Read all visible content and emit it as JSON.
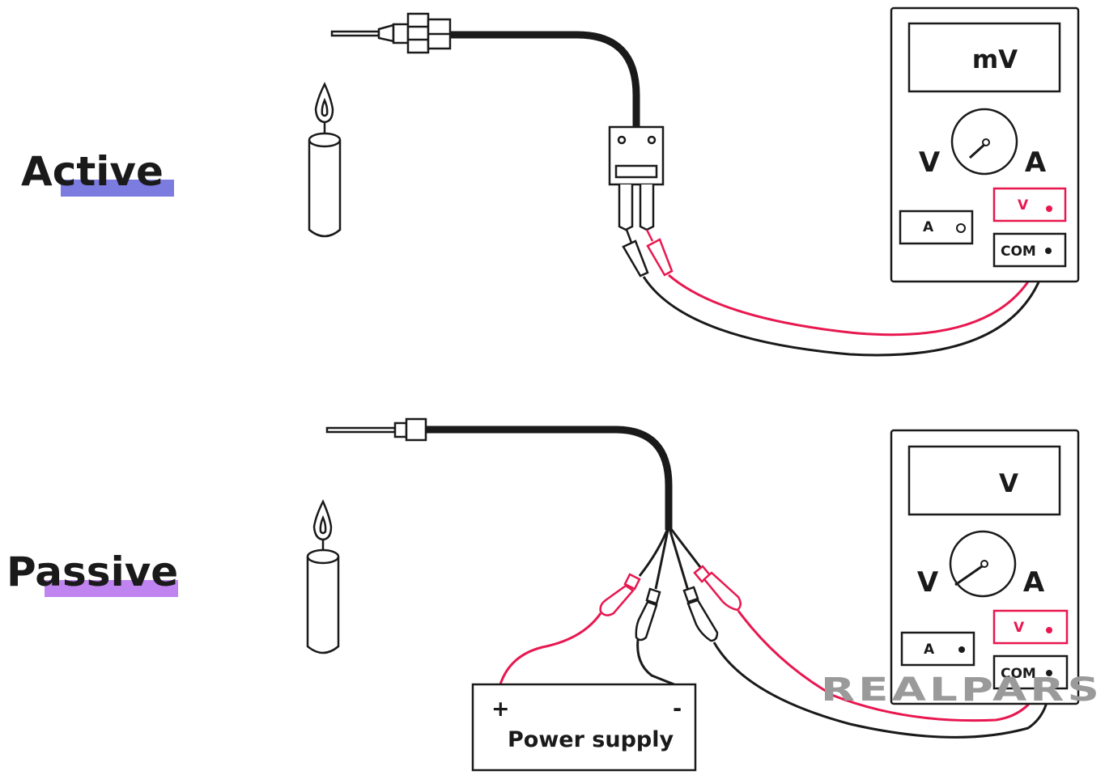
{
  "top": {
    "heading": "Active",
    "meter": {
      "display": "mV",
      "left_label": "V",
      "right_label": "A",
      "jack_v": "V",
      "jack_a": "A",
      "jack_com": "COM"
    }
  },
  "bottom": {
    "heading": "Passive",
    "meter": {
      "display": "V",
      "left_label": "V",
      "right_label": "A",
      "jack_v": "V",
      "jack_a": "A",
      "jack_com": "COM"
    },
    "power_supply": {
      "label": "Power supply",
      "plus": "+",
      "minus": "-"
    }
  },
  "logo": "REALPARS",
  "colors": {
    "wire_red": "#e8174f",
    "wire_black": "#1a1a1a",
    "underline_active": "#7b7be0",
    "underline_passive": "#c084f0",
    "logo": "#9a9a9a"
  }
}
